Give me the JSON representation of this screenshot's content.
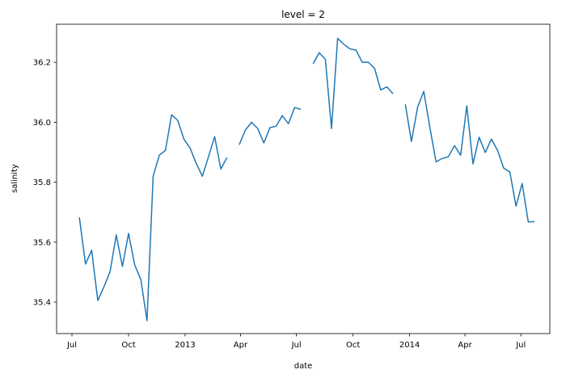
{
  "chart_data": {
    "type": "line",
    "title": "level = 2",
    "xlabel": "date",
    "ylabel": "salinity",
    "x": [
      15534,
      15544,
      15554,
      15564,
      15574,
      15584,
      15594,
      15604,
      15614,
      15624,
      15634,
      15644,
      15654,
      15664,
      15674,
      15684,
      15694,
      15704,
      15714,
      15724,
      15734,
      15744,
      15754,
      15764,
      15774,
      15784,
      15794,
      15804,
      15814,
      15824,
      15834,
      15844,
      15854,
      15864,
      15874,
      15884,
      15894,
      15904,
      15914,
      15924,
      15934,
      15944,
      15954,
      15964,
      15974,
      15984,
      15994,
      16004,
      16014,
      16024,
      16034,
      16044,
      16054,
      16064,
      16074,
      16084,
      16094,
      16104,
      16114,
      16124,
      16134,
      16144,
      16154,
      16164,
      16174,
      16184,
      16194,
      16204,
      16214,
      16224,
      16234,
      16244,
      16254,
      16264,
      16274
    ],
    "series": [
      {
        "name": "salinity",
        "color": "#1f77b4",
        "values": [
          35.683,
          35.527,
          35.573,
          35.405,
          35.451,
          35.502,
          35.624,
          35.519,
          35.629,
          35.524,
          35.475,
          35.338,
          35.82,
          35.89,
          35.906,
          36.025,
          36.006,
          35.944,
          35.914,
          35.863,
          35.82,
          35.885,
          35.952,
          35.844,
          35.882,
          null,
          35.925,
          35.974,
          36.0,
          35.979,
          35.931,
          35.982,
          35.987,
          36.022,
          35.995,
          36.049,
          36.043,
          null,
          36.195,
          36.232,
          36.21,
          35.979,
          36.28,
          36.26,
          36.245,
          36.24,
          36.2,
          36.2,
          36.18,
          36.108,
          36.118,
          36.095,
          null,
          36.06,
          35.936,
          36.05,
          36.103,
          35.982,
          35.868,
          35.879,
          35.885,
          35.922,
          35.89,
          36.055,
          35.861,
          35.95,
          35.899,
          35.944,
          35.906,
          35.847,
          35.834,
          35.72,
          35.796,
          35.667,
          35.669
        ]
      }
    ],
    "xlim": [
      15497,
      16299
    ],
    "xticks": [
      {
        "value": 15522,
        "label": "Jul"
      },
      {
        "value": 15614,
        "label": "Oct"
      },
      {
        "value": 15706,
        "label": "2013"
      },
      {
        "value": 15796,
        "label": "Apr"
      },
      {
        "value": 15887,
        "label": "Jul"
      },
      {
        "value": 15979,
        "label": "Oct"
      },
      {
        "value": 16071,
        "label": "2014"
      },
      {
        "value": 16161,
        "label": "Apr"
      },
      {
        "value": 16252,
        "label": "Jul"
      }
    ],
    "ylim": [
      35.295,
      36.327
    ],
    "yticks": [
      35.4,
      35.6,
      35.8,
      {
        "value": 36.0,
        "label": "36.0"
      },
      36.2
    ],
    "grid": false
  }
}
